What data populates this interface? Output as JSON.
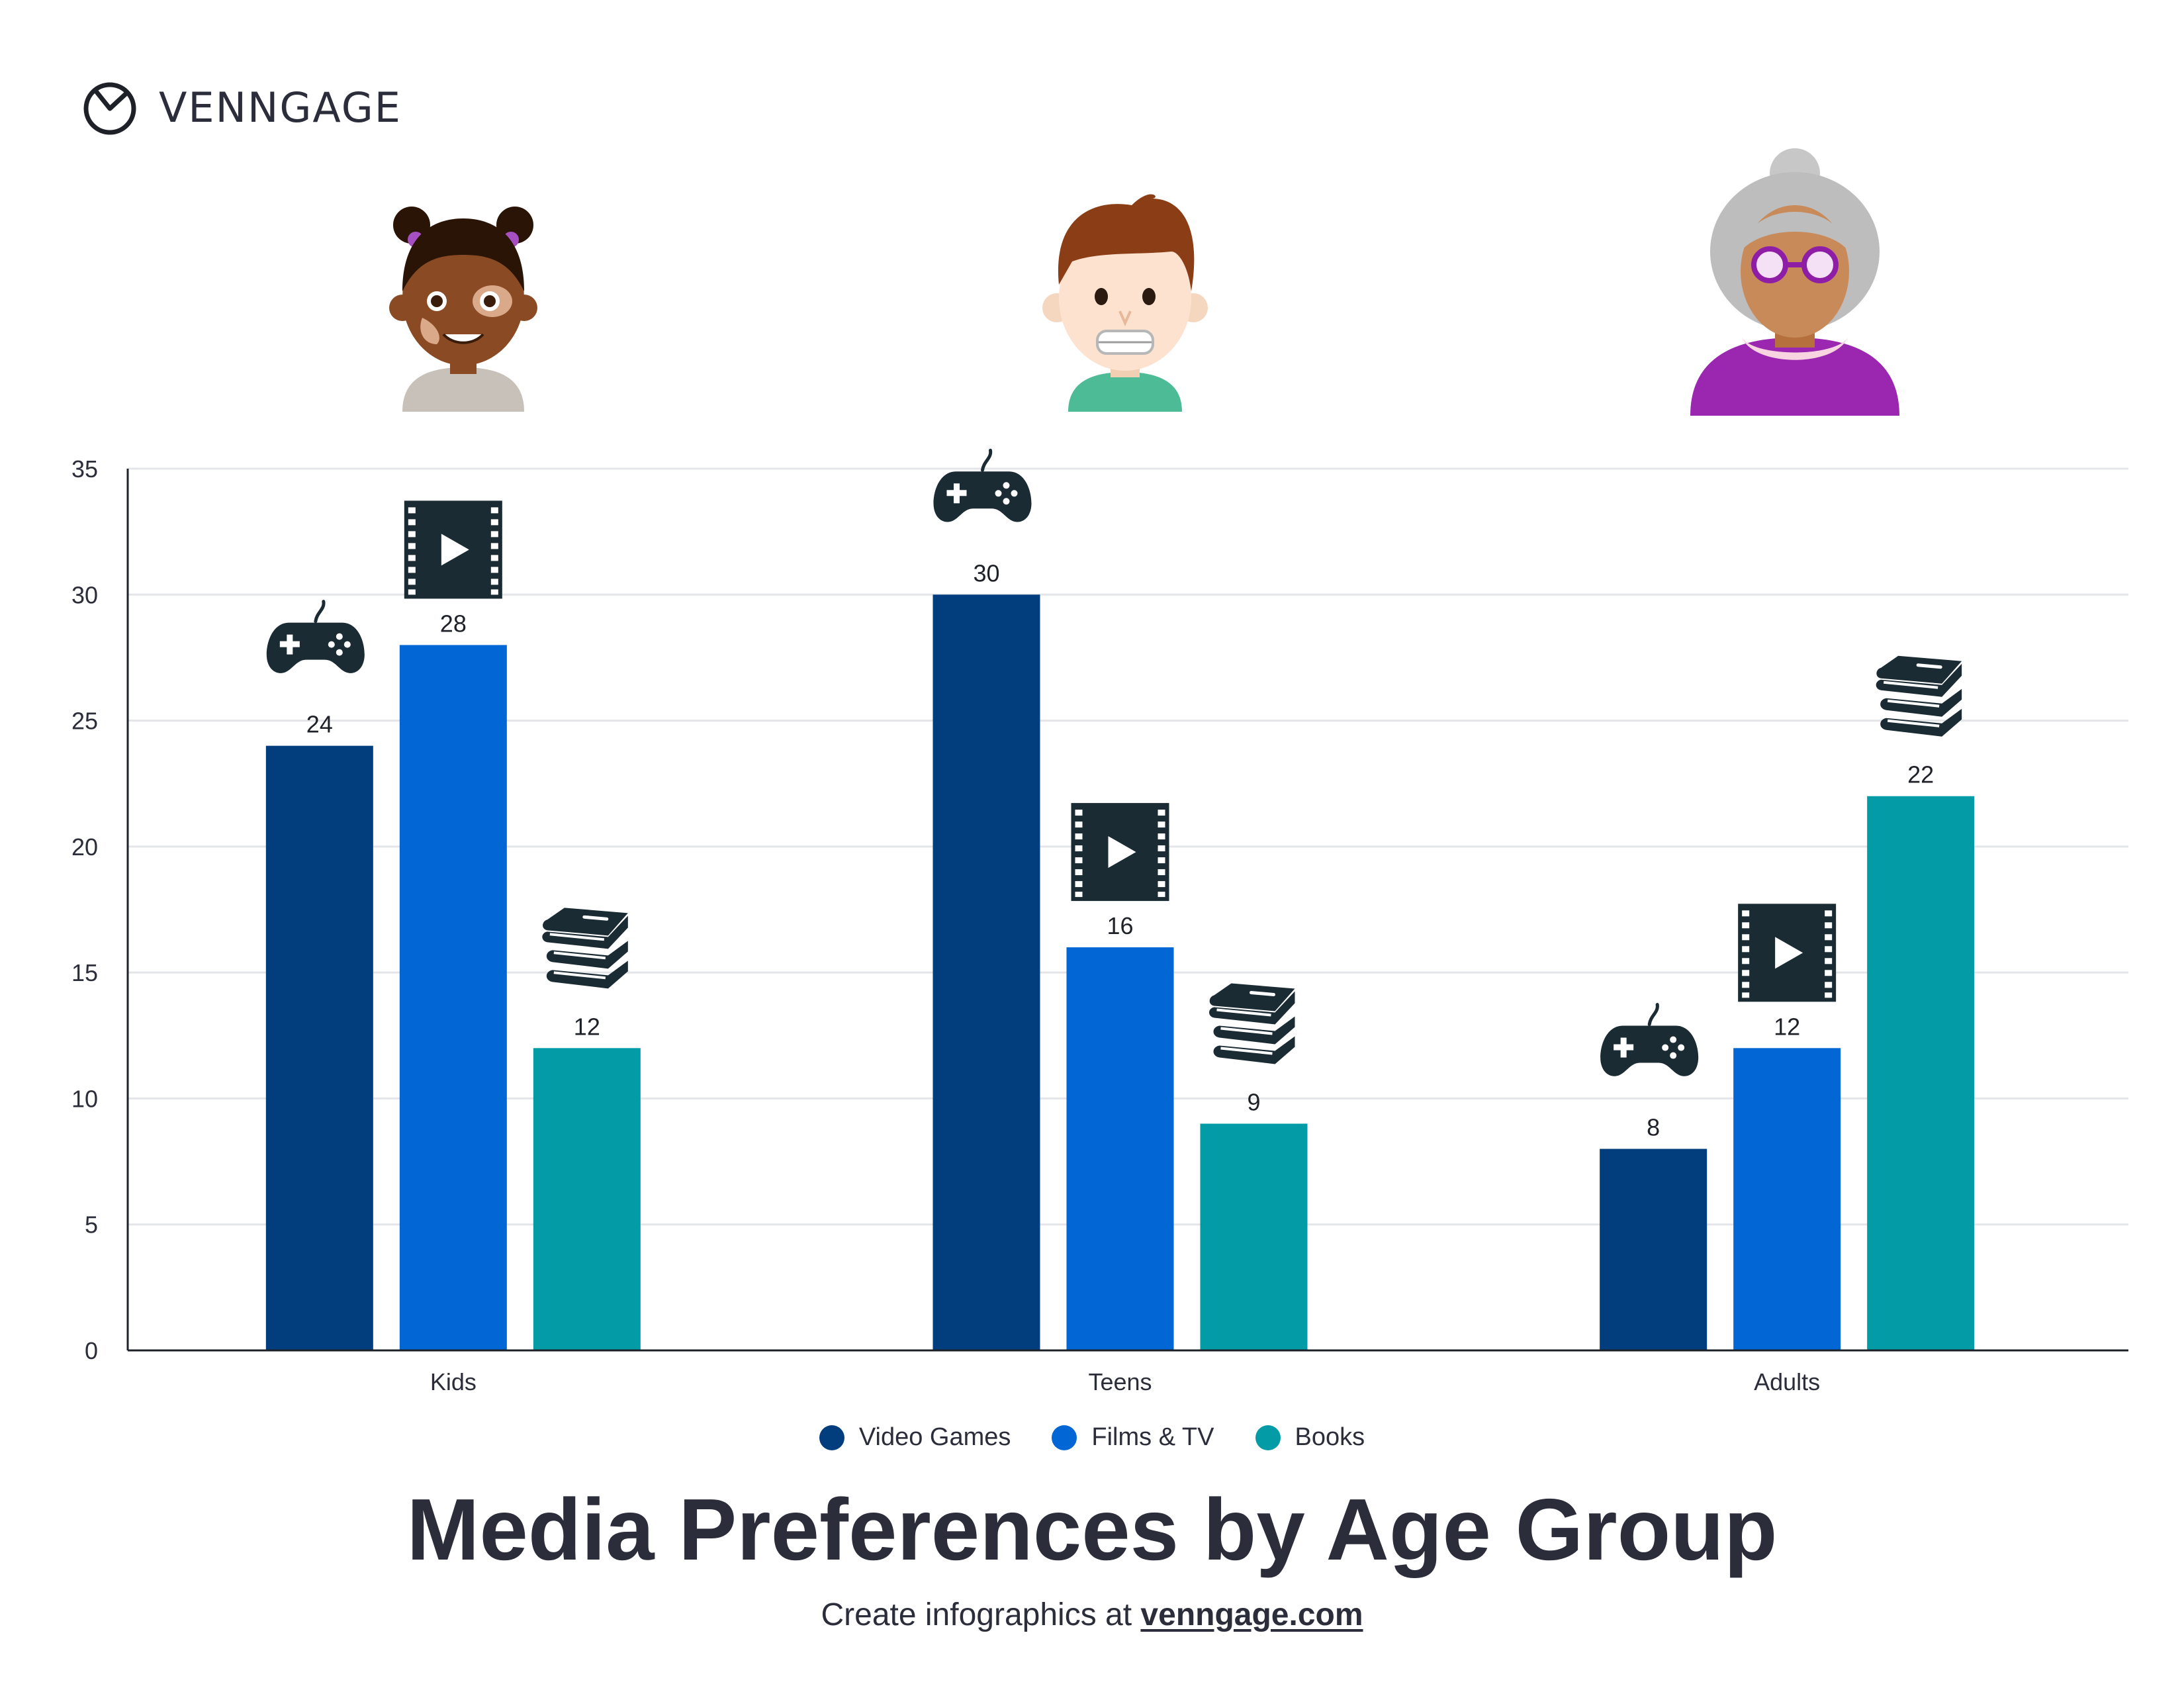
{
  "brand": {
    "name": "VENNGAGE"
  },
  "colors": {
    "video_games": "#023e7d",
    "films_tv": "#0266d4",
    "books": "#039ba6",
    "text": "#2b2d3a",
    "icon": "#1b2b33"
  },
  "icons": {
    "video_games": "gamepad-icon",
    "films_tv": "film-icon",
    "books": "books-icon"
  },
  "chart_data": {
    "type": "bar",
    "title": "Media Preferences by Age Group",
    "categories": [
      "Kids",
      "Teens",
      "Adults"
    ],
    "series": [
      {
        "name": "Video Games",
        "values": [
          24,
          30,
          8
        ]
      },
      {
        "name": "Films & TV",
        "values": [
          28,
          16,
          12
        ]
      },
      {
        "name": "Books",
        "values": [
          12,
          9,
          22
        ]
      }
    ],
    "xlabel": "",
    "ylabel": "",
    "ylim": [
      0,
      35
    ],
    "yticks": [
      0,
      5,
      10,
      15,
      20,
      25,
      30,
      35
    ],
    "grid": true,
    "legend_position": "bottom"
  },
  "footer": {
    "prefix": "Create infographics at ",
    "link": "venngage.com"
  }
}
